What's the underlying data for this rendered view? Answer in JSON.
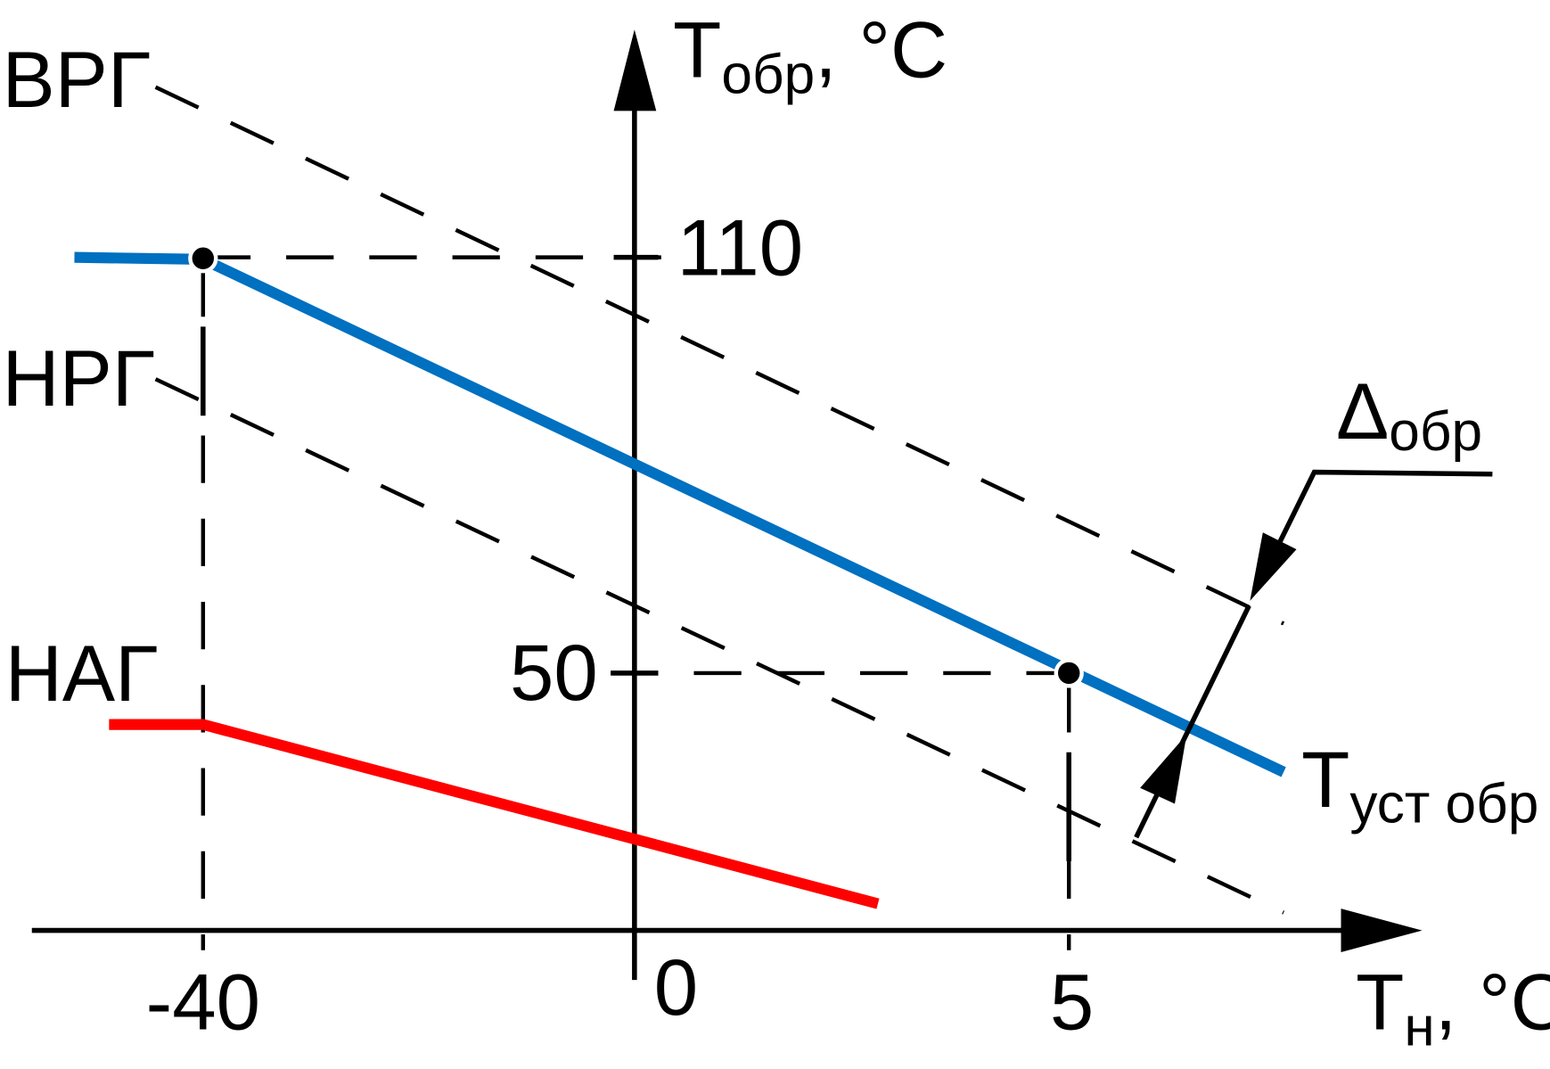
{
  "curves": {
    "upper": "ВРГ",
    "lower": "НРГ",
    "emergency": "НАГ"
  },
  "y_axis": {
    "symbol": "T",
    "subscript": "обр",
    "unit": ", °C",
    "ticks": [
      "110",
      "50"
    ]
  },
  "x_axis": {
    "symbol": "T",
    "subscript": "н",
    "unit": ", °C",
    "ticks": [
      "-40",
      "0",
      "5"
    ]
  },
  "delta_label": {
    "symbol": "Δ",
    "subscript": "обр"
  },
  "setpoint_label": {
    "symbol": "T",
    "subscript": "уст обр"
  }
}
